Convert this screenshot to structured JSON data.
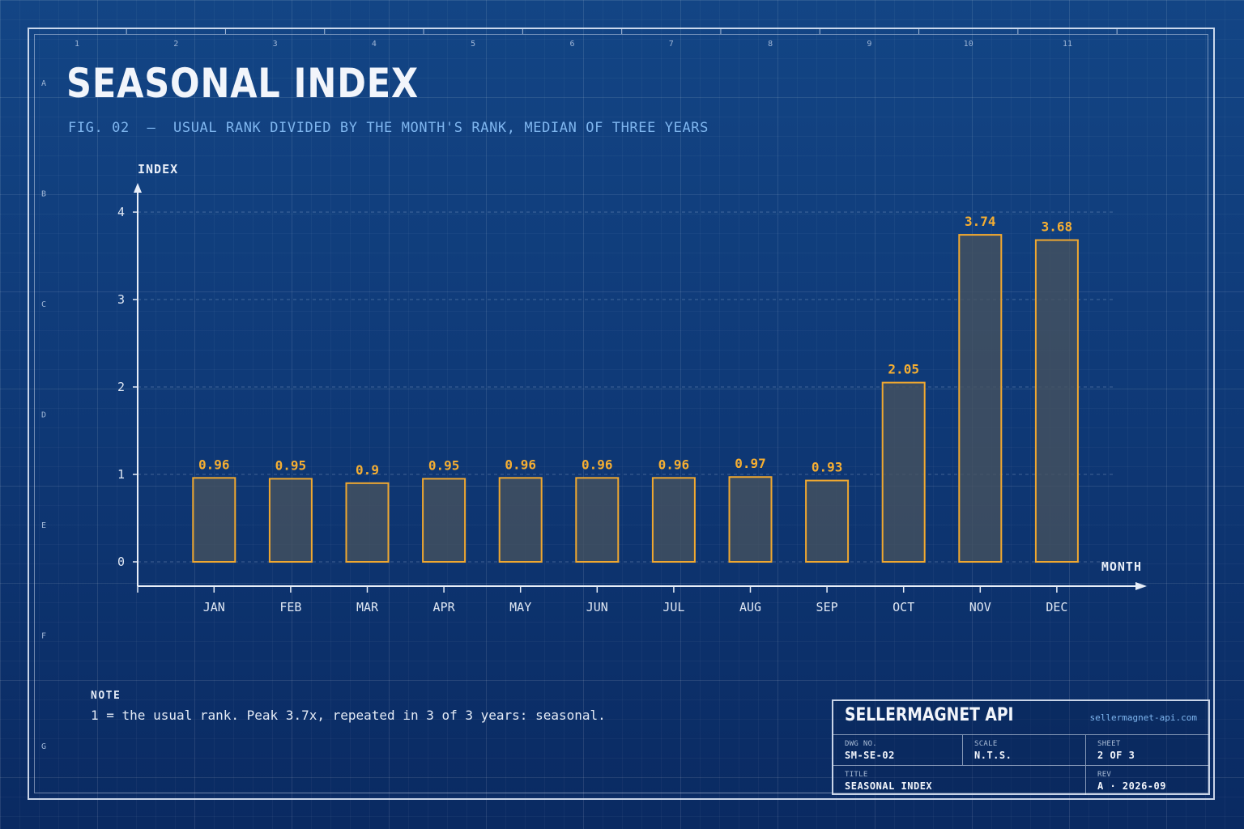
{
  "header": {
    "title": "SEASONAL INDEX",
    "subtitle": "FIG. 02  —  USUAL RANK DIVIDED BY THE MONTH'S RANK, MEDIAN OF THREE YEARS"
  },
  "frame": {
    "column_labels": [
      "1",
      "2",
      "3",
      "4",
      "5",
      "6",
      "7",
      "8",
      "9",
      "10",
      "11"
    ],
    "row_labels": [
      "A",
      "B",
      "C",
      "D",
      "E",
      "F",
      "G"
    ]
  },
  "chart_data": {
    "type": "bar",
    "categories": [
      "JAN",
      "FEB",
      "MAR",
      "APR",
      "MAY",
      "JUN",
      "JUL",
      "AUG",
      "SEP",
      "OCT",
      "NOV",
      "DEC"
    ],
    "values": [
      0.96,
      0.95,
      0.9,
      0.95,
      0.96,
      0.96,
      0.96,
      0.97,
      0.93,
      2.05,
      3.74,
      3.68
    ],
    "value_labels": [
      "0.96",
      "0.95",
      "0.9",
      "0.95",
      "0.96",
      "0.96",
      "0.96",
      "0.97",
      "0.93",
      "2.05",
      "3.74",
      "3.68"
    ],
    "xlabel": "MONTH",
    "ylabel": "INDEX",
    "ylim": [
      0,
      4
    ],
    "yticks": [
      0,
      1,
      2,
      3,
      4
    ],
    "grid": true,
    "colors": {
      "bar_stroke": "#f0a830",
      "bar_fill": "#46525e",
      "value_label": "#f5ae32",
      "axis": "#e8eef8"
    }
  },
  "note": {
    "label": "NOTE",
    "text": "1 = the usual rank. Peak 3.7x, repeated in 3 of 3 years: seasonal."
  },
  "title_block": {
    "company": "SELLERMAGNET API",
    "url": "sellermagnet-api.com",
    "dwg_no_label": "DWG NO.",
    "dwg_no": "SM-SE-02",
    "scale_label": "SCALE",
    "scale": "N.T.S.",
    "sheet_label": "SHEET",
    "sheet": "2 OF 3",
    "title_label": "TITLE",
    "title": "SEASONAL INDEX",
    "rev_label": "REV",
    "rev": "A · 2026-09"
  }
}
